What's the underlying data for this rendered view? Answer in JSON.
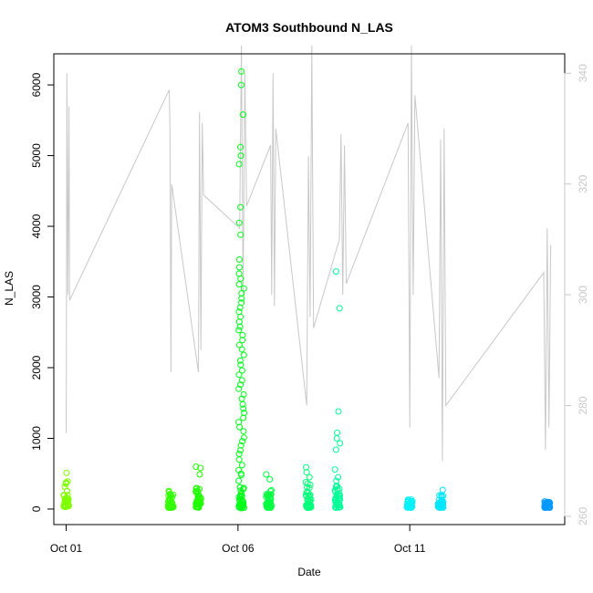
{
  "chart_data": {
    "type": "scatter",
    "title": "ATOM3 Southbound N_LAS",
    "xlabel": "Date",
    "ylabel": "N_LAS",
    "x_ticks": [
      "Oct 01",
      "Oct 06",
      "Oct 11"
    ],
    "x_tick_days": [
      1,
      6,
      11
    ],
    "xlim": [
      0.64,
      15.51
    ],
    "ylim": [
      -220,
      6440
    ],
    "y_ticks": [
      0,
      1000,
      2000,
      3000,
      4000,
      5000,
      6000
    ],
    "y2lim": [
      258.5,
      343.5
    ],
    "y2_ticks": [
      260,
      280,
      300,
      320,
      340
    ],
    "grid": false,
    "series": [
      {
        "type": "scatter",
        "clusters": [
          {
            "day": 1.0,
            "color": "#80ff00",
            "min": 30,
            "max": 400,
            "outliers": [
              510
            ]
          },
          {
            "day": 4.05,
            "color": "#33ff00",
            "min": 20,
            "max": 260,
            "outliers": []
          },
          {
            "day": 4.85,
            "color": "#20ff00",
            "min": 20,
            "max": 300,
            "outliers": [
              490,
              580,
              600
            ]
          },
          {
            "day": 6.1,
            "color": "#00ff19",
            "min": 10,
            "max": 330,
            "outliers": [
              400,
              480,
              500,
              550,
              620,
              700,
              780,
              830,
              900,
              960,
              1010,
              1100,
              1160,
              1230,
              1290,
              1360,
              1420,
              1480,
              1560,
              1620,
              1700,
              1760,
              1820,
              1900,
              1960,
              2040,
              2100,
              2180,
              2260,
              2320,
              2390,
              2460,
              2530,
              2580,
              2650,
              2720,
              2790,
              2850,
              2920,
              2980,
              3050,
              3120,
              3180,
              3260,
              3330,
              3420,
              3530,
              3880,
              4050,
              4270,
              4880,
              5000,
              5120,
              5580,
              6000,
              6190
            ]
          },
          {
            "day": 6.9,
            "color": "#00ff40",
            "min": 20,
            "max": 330,
            "outliers": [
              420,
              490
            ]
          },
          {
            "day": 8.05,
            "color": "#00ff7a",
            "min": 20,
            "max": 380,
            "outliers": [
              450,
              520,
              590
            ]
          },
          {
            "day": 8.9,
            "color": "#00ff99",
            "min": 20,
            "max": 340,
            "outliers": [
              400,
              450,
              560,
              840,
              930,
              1000,
              1080,
              1380,
              2840,
              3360
            ]
          },
          {
            "day": 11.0,
            "color": "#00f2ff",
            "min": 20,
            "max": 140,
            "outliers": []
          },
          {
            "day": 11.9,
            "color": "#00e6ff",
            "min": 20,
            "max": 200,
            "outliers": [
              270
            ]
          },
          {
            "day": 15.0,
            "color": "#0099ff",
            "min": 20,
            "max": 110,
            "outliers": []
          }
        ]
      },
      {
        "type": "line",
        "axis": "right",
        "color": "#c8c8c8",
        "x": [
          1.0,
          1.02,
          1.05,
          1.08,
          1.1,
          4.0,
          4.02,
          4.05,
          4.07,
          4.85,
          4.88,
          4.92,
          4.96,
          5.0,
          6.05,
          6.1,
          6.15,
          6.2,
          6.25,
          6.95,
          6.98,
          7.02,
          7.06,
          7.1,
          8.0,
          8.05,
          8.1,
          8.15,
          8.2,
          8.95,
          9.0,
          9.05,
          9.1,
          9.15,
          10.95,
          11.0,
          11.05,
          11.1,
          11.15,
          11.85,
          11.9,
          11.95,
          12.0,
          12.05,
          14.9,
          14.95,
          15.0,
          15.05,
          15.1
        ],
        "y": [
          275,
          340,
          300,
          334,
          299,
          337,
          330,
          286,
          320,
          286,
          333,
          290,
          331,
          318,
          312,
          345,
          300,
          340,
          316,
          327,
          300,
          340,
          298,
          330,
          280,
          325,
          296,
          345,
          294,
          310,
          329,
          300,
          327,
          302,
          331,
          276,
          345,
          300,
          336,
          285,
          328,
          270,
          330,
          280,
          304,
          272,
          312,
          276,
          309
        ]
      }
    ]
  }
}
